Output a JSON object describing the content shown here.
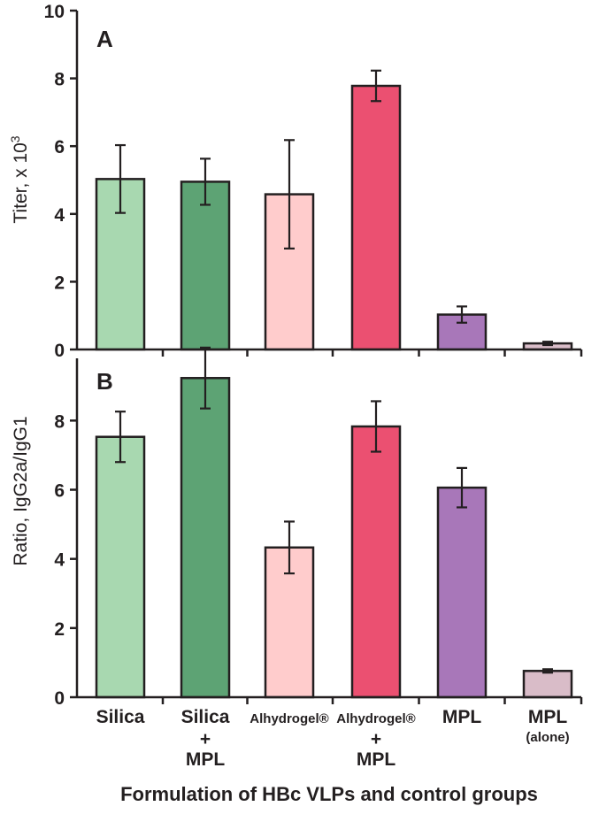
{
  "chart_data": [
    {
      "type": "bar",
      "panel": "A",
      "ylabel": "Titer, x 10",
      "ylabel_sup": "3",
      "ylim": [
        0,
        10
      ],
      "yticks": [
        0,
        2,
        4,
        6,
        8,
        10
      ],
      "categories": [
        "Silica",
        "Silica + MPL",
        "Alhydrogel®",
        "Alhydrogel® + MPL",
        "MPL",
        "MPL (alone)"
      ],
      "values": [
        5.03,
        4.95,
        4.58,
        7.78,
        1.03,
        0.18
      ],
      "errors": [
        1.0,
        0.68,
        1.6,
        0.45,
        0.24,
        0.05
      ],
      "colors": [
        "#a8d8b0",
        "#5da374",
        "#ffcccc",
        "#eb5071",
        "#a877b9",
        "#d9bcc8"
      ]
    },
    {
      "type": "bar",
      "panel": "B",
      "ylabel": "Ratio, IgG2a/IgG1",
      "ylim": [
        0,
        9.8
      ],
      "yticks": [
        0,
        2,
        4,
        6,
        8
      ],
      "categories": [
        "Silica",
        "Silica + MPL",
        "Alhydrogel®",
        "Alhydrogel® + MPL",
        "MPL",
        "MPL (alone)"
      ],
      "values": [
        7.53,
        9.23,
        4.33,
        7.83,
        6.06,
        0.76
      ],
      "errors": [
        0.73,
        0.88,
        0.75,
        0.73,
        0.57,
        0.05
      ],
      "colors": [
        "#a8d8b0",
        "#5da374",
        "#ffcccc",
        "#eb5071",
        "#a877b9",
        "#d9bcc8"
      ]
    }
  ],
  "x_axis": {
    "title": "Formulation of HBc VLPs and control groups",
    "labels": [
      {
        "line1": "Silica",
        "line2": "",
        "line3": ""
      },
      {
        "line1": "Silica",
        "line2": "+",
        "line3": "MPL"
      },
      {
        "line1": "Alhydrogel®",
        "line2": "",
        "line3": ""
      },
      {
        "line1": "Alhydrogel®",
        "line2": "+",
        "line3": "MPL"
      },
      {
        "line1": "MPL",
        "line2": "",
        "line3": ""
      },
      {
        "line1": "MPL",
        "line2": "(alone)",
        "line3": ""
      }
    ]
  }
}
